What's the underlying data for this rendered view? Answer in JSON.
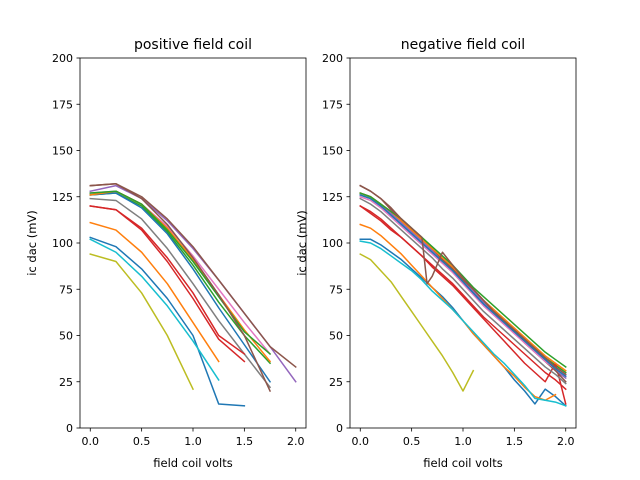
{
  "chart_data": [
    {
      "type": "line",
      "title": "positive field coil",
      "xlabel": "field coil volts",
      "ylabel": "ic dac (mV)",
      "xlim": [
        -0.1,
        2.1
      ],
      "ylim": [
        0,
        200
      ],
      "xticks": [
        0.0,
        0.5,
        1.0,
        1.5,
        2.0
      ],
      "xtick_labels": [
        "0.0",
        "0.5",
        "1.0",
        "1.5",
        "2.0"
      ],
      "yticks": [
        0,
        25,
        50,
        75,
        100,
        125,
        150,
        175,
        200
      ],
      "ytick_labels": [
        "0",
        "25",
        "50",
        "75",
        "100",
        "125",
        "150",
        "175",
        "200"
      ],
      "grid": false,
      "series": [
        {
          "color": "#1f77b4",
          "x": [
            0,
            0.25,
            0.5,
            0.75,
            1.0,
            1.25,
            1.5
          ],
          "y": [
            103,
            98,
            86,
            70,
            50,
            13,
            12
          ]
        },
        {
          "color": "#ff7f0e",
          "x": [
            0,
            0.25,
            0.5,
            0.75,
            1.0,
            1.25
          ],
          "y": [
            111,
            107,
            95,
            78,
            57,
            36
          ]
        },
        {
          "color": "#2ca02c",
          "x": [
            0,
            0.25,
            0.5,
            0.75,
            1.0,
            1.25,
            1.5,
            1.75
          ],
          "y": [
            126,
            127,
            120,
            106,
            88,
            68,
            50,
            35
          ]
        },
        {
          "color": "#d62728",
          "x": [
            0,
            0.25,
            0.5,
            0.75,
            1.0,
            1.25,
            1.5
          ],
          "y": [
            120,
            118,
            107,
            90,
            70,
            48,
            36
          ]
        },
        {
          "color": "#9467bd",
          "x": [
            0,
            0.25,
            0.5,
            0.75,
            1.0,
            1.25,
            1.5,
            1.75,
            2.0
          ],
          "y": [
            128,
            131,
            124,
            112,
            97,
            80,
            62,
            44,
            25
          ]
        },
        {
          "color": "#8c564b",
          "x": [
            0,
            0.25,
            0.5,
            0.75,
            1.0,
            1.25,
            1.5,
            1.75,
            2.0
          ],
          "y": [
            131,
            132,
            125,
            113,
            98,
            80,
            62,
            44,
            33
          ]
        },
        {
          "color": "#e377c2",
          "x": [
            0,
            0.25,
            0.5,
            0.75,
            1.0,
            1.25,
            1.5,
            1.75
          ],
          "y": [
            127,
            128,
            121,
            109,
            93,
            75,
            57,
            40
          ]
        },
        {
          "color": "#7f7f7f",
          "x": [
            0,
            0.25,
            0.5,
            0.75,
            1.0,
            1.25,
            1.5,
            1.75
          ],
          "y": [
            124,
            123,
            113,
            97,
            78,
            58,
            40,
            22
          ]
        },
        {
          "color": "#bcbd22",
          "x": [
            0,
            0.25,
            0.5,
            0.75,
            1.0
          ],
          "y": [
            94,
            90,
            73,
            50,
            21
          ]
        },
        {
          "color": "#17becf",
          "x": [
            0,
            0.25,
            0.5,
            0.75,
            1.0,
            1.25
          ],
          "y": [
            102,
            95,
            82,
            66,
            47,
            26
          ]
        },
        {
          "color": "#1f77b4",
          "x": [
            0,
            0.25,
            0.5,
            0.75,
            1.0,
            1.25,
            1.5,
            1.75
          ],
          "y": [
            126,
            127,
            119,
            105,
            86,
            65,
            45,
            25
          ]
        },
        {
          "color": "#ff7f0e",
          "x": [
            0,
            0.25,
            0.5,
            0.75,
            1.0,
            1.25,
            1.5,
            1.75
          ],
          "y": [
            126,
            128,
            121,
            108,
            91,
            72,
            53,
            36
          ]
        },
        {
          "color": "#2ca02c",
          "x": [
            0,
            0.25,
            0.5,
            0.75,
            1.0,
            1.25,
            1.5,
            1.75
          ],
          "y": [
            127,
            128,
            121,
            107,
            90,
            71,
            52,
            40
          ]
        },
        {
          "color": "#d62728",
          "x": [
            0,
            0.25,
            0.5,
            0.75,
            1.0,
            1.25,
            1.5
          ],
          "y": [
            120,
            118,
            108,
            92,
            73,
            50,
            40
          ]
        },
        {
          "color": "#8c564b",
          "x": [
            0,
            0.25,
            0.5,
            0.75,
            1.0,
            1.25,
            1.5,
            1.75
          ],
          "y": [
            131,
            132,
            124,
            110,
            92,
            72,
            50,
            20
          ]
        }
      ]
    },
    {
      "type": "line",
      "title": "negative field coil",
      "xlabel": "field coil volts",
      "ylabel": "ic dac (mV)",
      "xlim": [
        -0.1,
        2.1
      ],
      "ylim": [
        0,
        200
      ],
      "xticks": [
        0.0,
        0.5,
        1.0,
        1.5,
        2.0
      ],
      "xtick_labels": [
        "0.0",
        "0.5",
        "1.0",
        "1.5",
        "2.0"
      ],
      "yticks": [
        0,
        25,
        50,
        75,
        100,
        125,
        150,
        175,
        200
      ],
      "ytick_labels": [
        "0",
        "25",
        "50",
        "75",
        "100",
        "125",
        "150",
        "175",
        "200"
      ],
      "grid": false,
      "series": [
        {
          "color": "#1f77b4",
          "x": [
            0,
            0.1,
            0.2,
            0.3,
            0.4,
            0.5,
            0.6,
            0.7,
            0.8,
            0.9,
            1.0,
            1.1,
            1.2,
            1.3,
            1.4,
            1.5,
            1.6,
            1.7,
            1.8,
            1.9,
            2.0
          ],
          "y": [
            102,
            102,
            99,
            95,
            91,
            86,
            81,
            76,
            71,
            65,
            58,
            51,
            45,
            39,
            33,
            26,
            20,
            13,
            21,
            17,
            12
          ]
        },
        {
          "color": "#ff7f0e",
          "x": [
            0,
            0.1,
            0.2,
            0.3,
            0.4,
            0.5,
            0.6,
            0.7,
            0.8,
            0.9,
            1.0,
            1.1,
            1.2,
            1.3,
            1.4,
            1.5,
            1.6,
            1.7,
            1.8,
            1.9
          ],
          "y": [
            110,
            108,
            104,
            99,
            94,
            88,
            82,
            76,
            70,
            64,
            58,
            51,
            45,
            39,
            33,
            28,
            22,
            17,
            15,
            18
          ]
        },
        {
          "color": "#2ca02c",
          "x": [
            0,
            0.1,
            0.2,
            0.3,
            0.4,
            0.5,
            0.6,
            0.7,
            0.8,
            0.9,
            1.0,
            1.1,
            1.2,
            1.3,
            1.4,
            1.5,
            1.6,
            1.7,
            1.8,
            1.9,
            2.0
          ],
          "y": [
            126,
            124,
            120,
            116,
            111,
            106,
            101,
            96,
            91,
            86,
            80,
            74,
            68,
            63,
            58,
            53,
            48,
            43,
            38,
            34,
            30
          ]
        },
        {
          "color": "#d62728",
          "x": [
            0,
            0.1,
            0.2,
            0.3,
            0.4,
            0.5,
            0.6,
            0.7,
            0.8,
            0.9,
            1.0,
            1.1,
            1.2,
            1.3,
            1.4,
            1.5,
            1.6,
            1.7,
            1.8,
            1.9,
            2.0
          ],
          "y": [
            120,
            117,
            113,
            108,
            103,
            98,
            93,
            87,
            82,
            77,
            71,
            65,
            59,
            53,
            47,
            41,
            35,
            30,
            25,
            35,
            13
          ]
        },
        {
          "color": "#9467bd",
          "x": [
            0,
            0.1,
            0.2,
            0.3,
            0.4,
            0.5,
            0.6,
            0.7,
            0.8,
            0.9,
            1.0,
            1.1,
            1.2,
            1.3,
            1.4,
            1.5,
            1.6,
            1.7,
            1.8,
            1.9,
            2.0
          ],
          "y": [
            127,
            125,
            121,
            116,
            111,
            106,
            101,
            96,
            91,
            86,
            80,
            74,
            68,
            62,
            57,
            52,
            47,
            42,
            37,
            31,
            27
          ]
        },
        {
          "color": "#8c564b",
          "x": [
            0,
            0.1,
            0.2,
            0.3,
            0.4,
            0.5,
            0.6,
            0.7,
            0.8,
            0.9,
            1.0,
            1.1,
            1.2,
            1.3,
            1.4,
            1.5,
            1.6,
            1.7,
            1.8,
            1.9,
            2.0
          ],
          "y": [
            131,
            128,
            124,
            119,
            113,
            108,
            103,
            97,
            91,
            86,
            80,
            75,
            69,
            63,
            57,
            52,
            46,
            41,
            36,
            31,
            25
          ]
        },
        {
          "color": "#e377c2",
          "x": [
            0,
            0.1,
            0.2,
            0.3,
            0.4,
            0.5,
            0.6,
            0.7,
            0.8,
            0.9,
            1.0,
            1.1,
            1.2,
            1.3,
            1.4,
            1.5,
            1.6,
            1.7,
            1.8,
            1.9,
            2.0
          ],
          "y": [
            125,
            123,
            119,
            114,
            109,
            104,
            99,
            94,
            89,
            84,
            78,
            72,
            66,
            61,
            56,
            51,
            46,
            41,
            36,
            32,
            28
          ]
        },
        {
          "color": "#7f7f7f",
          "x": [
            0,
            0.1,
            0.2,
            0.3,
            0.4,
            0.5,
            0.6,
            0.7,
            0.8,
            0.9,
            1.0,
            1.1,
            1.2,
            1.3,
            1.4,
            1.5,
            1.6,
            1.7,
            1.8,
            1.9,
            2.0
          ],
          "y": [
            124,
            121,
            117,
            112,
            107,
            102,
            97,
            92,
            86,
            81,
            75,
            69,
            63,
            58,
            53,
            48,
            43,
            38,
            33,
            29,
            24
          ]
        },
        {
          "color": "#bcbd22",
          "x": [
            0,
            0.1,
            0.2,
            0.3,
            0.4,
            0.5,
            0.6,
            0.7,
            0.8,
            0.9,
            1.0,
            1.1
          ],
          "y": [
            94,
            91,
            85,
            79,
            71,
            63,
            55,
            47,
            39,
            30,
            20,
            31
          ]
        },
        {
          "color": "#17becf",
          "x": [
            0,
            0.1,
            0.2,
            0.3,
            0.4,
            0.5,
            0.6,
            0.7,
            0.8,
            0.9,
            1.0,
            1.1,
            1.2,
            1.3,
            1.4,
            1.5,
            1.6,
            1.7,
            1.8,
            1.9,
            2.0
          ],
          "y": [
            101,
            100,
            97,
            93,
            89,
            85,
            80,
            74,
            69,
            64,
            58,
            52,
            46,
            40,
            35,
            29,
            23,
            16,
            15,
            14,
            12
          ]
        },
        {
          "color": "#1f77b4",
          "x": [
            0,
            0.1,
            0.2,
            0.3,
            0.4,
            0.5,
            0.6,
            0.7,
            0.8,
            0.9,
            1.0,
            1.1,
            1.2,
            1.3,
            1.4,
            1.5,
            1.6,
            1.7,
            1.8,
            1.9,
            2.0
          ],
          "y": [
            126,
            124,
            120,
            115,
            110,
            105,
            100,
            95,
            90,
            85,
            79,
            73,
            67,
            62,
            57,
            52,
            47,
            42,
            37,
            32,
            28
          ]
        },
        {
          "color": "#ff7f0e",
          "x": [
            0,
            0.1,
            0.2,
            0.3,
            0.4,
            0.5,
            0.6,
            0.7,
            0.8,
            0.9,
            1.0,
            1.1,
            1.2,
            1.3,
            1.4,
            1.5,
            1.6,
            1.7,
            1.8,
            1.9,
            2.0
          ],
          "y": [
            127,
            125,
            121,
            117,
            112,
            107,
            102,
            97,
            92,
            87,
            81,
            75,
            69,
            64,
            59,
            54,
            49,
            44,
            39,
            35,
            31
          ]
        },
        {
          "color": "#2ca02c",
          "x": [
            0,
            0.1,
            0.2,
            0.3,
            0.4,
            0.5,
            0.6,
            0.7,
            0.8,
            0.9,
            1.0,
            1.1,
            1.2,
            1.3,
            1.4,
            1.5,
            1.6,
            1.7,
            1.8,
            1.9,
            2.0
          ],
          "y": [
            127,
            125,
            121,
            117,
            113,
            108,
            103,
            98,
            93,
            88,
            82,
            76,
            71,
            66,
            61,
            56,
            51,
            46,
            41,
            37,
            33
          ]
        },
        {
          "color": "#d62728",
          "x": [
            0,
            0.1,
            0.2,
            0.3,
            0.4,
            0.5,
            0.6,
            0.7,
            0.8,
            0.9,
            1.0,
            1.1,
            1.2,
            1.3,
            1.4,
            1.5,
            1.6,
            1.7,
            1.8,
            1.9,
            2.0
          ],
          "y": [
            120,
            116,
            112,
            107,
            103,
            98,
            93,
            88,
            83,
            78,
            72,
            66,
            60,
            55,
            50,
            45,
            40,
            35,
            30,
            26,
            21
          ]
        },
        {
          "color": "#8c564b",
          "x": [
            0,
            0.1,
            0.2,
            0.3,
            0.4,
            0.5,
            0.6,
            0.65,
            0.7,
            0.8,
            0.9,
            1.0,
            1.1,
            1.2,
            1.3,
            1.4,
            1.5,
            1.6,
            1.7,
            1.8,
            1.9,
            2.0
          ],
          "y": [
            131,
            128,
            124,
            118,
            113,
            108,
            103,
            78,
            82,
            95,
            88,
            81,
            75,
            69,
            63,
            58,
            53,
            48,
            43,
            38,
            33,
            29
          ]
        }
      ]
    }
  ]
}
